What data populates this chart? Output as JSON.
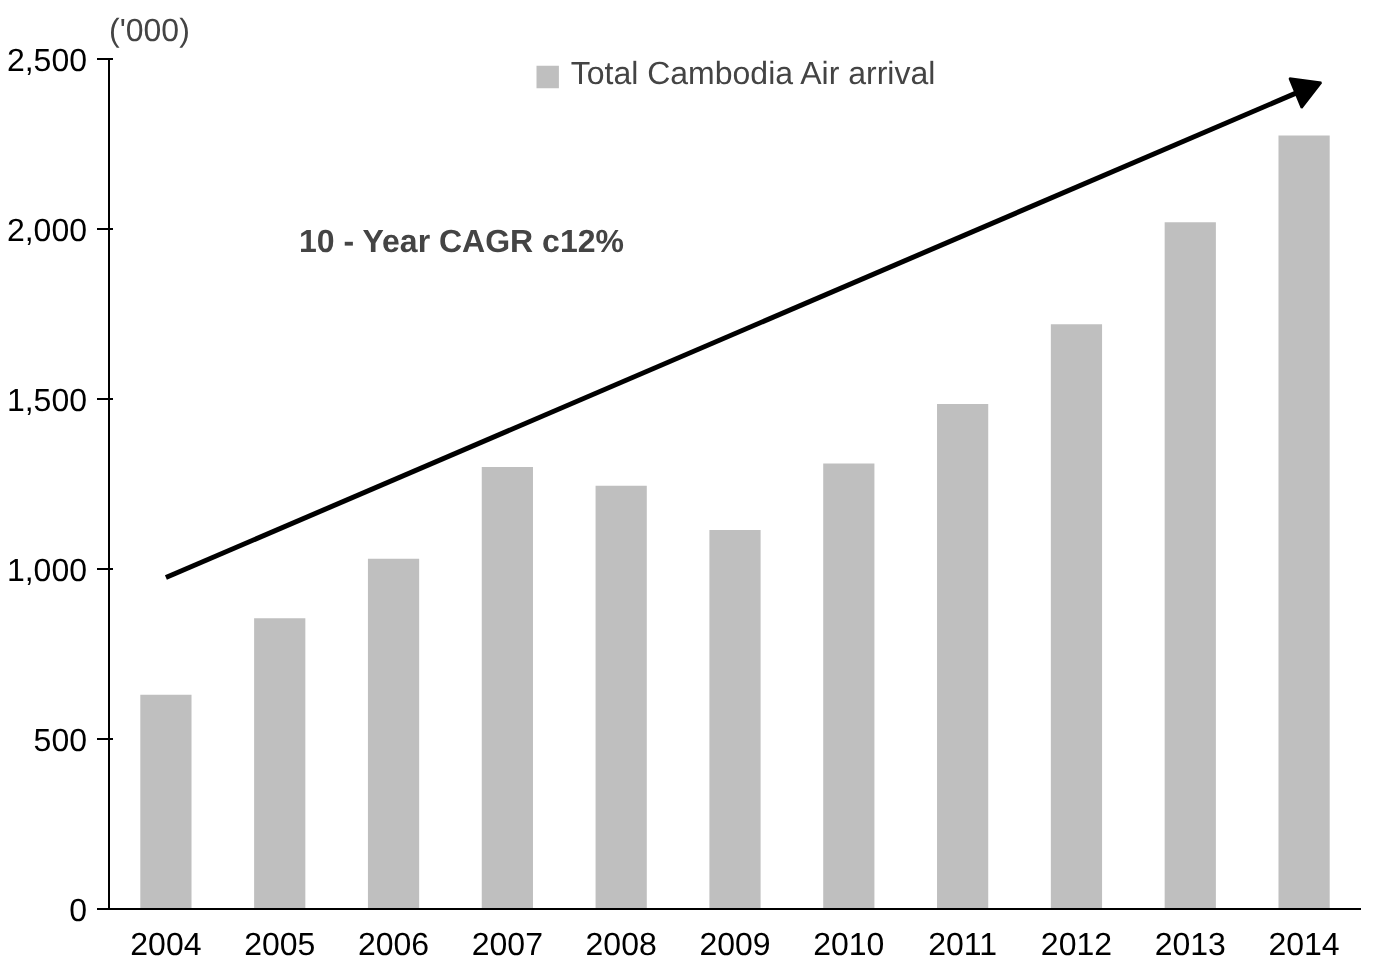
{
  "chart_data": {
    "type": "bar",
    "ylabel": "('000)",
    "categories": [
      "2004",
      "2005",
      "2006",
      "2007",
      "2008",
      "2009",
      "2010",
      "2011",
      "2012",
      "2013",
      "2014"
    ],
    "series": [
      {
        "name": "Total Cambodia Air arrival",
        "color": "#bfbfbf",
        "values": [
          630,
          855,
          1030,
          1300,
          1245,
          1115,
          1310,
          1485,
          1720,
          2020,
          2275
        ]
      },
      {
        "type": "line",
        "color": "#000000",
        "values": [
          975,
          null,
          null,
          null,
          null,
          null,
          null,
          null,
          null,
          null,
          2410
        ]
      }
    ],
    "annotations": [
      "10 - Year CAGR c12%"
    ],
    "ylim": [
      0,
      2500
    ],
    "yticks": [
      {
        "value": 0,
        "label": "0"
      },
      {
        "value": 500,
        "label": "500"
      },
      {
        "value": 1000,
        "label": "1,000"
      },
      {
        "value": 1500,
        "label": "1,500"
      },
      {
        "value": 2000,
        "label": "2,000"
      },
      {
        "value": 2500,
        "label": "2,500"
      }
    ],
    "grid": false,
    "legend": "top"
  }
}
